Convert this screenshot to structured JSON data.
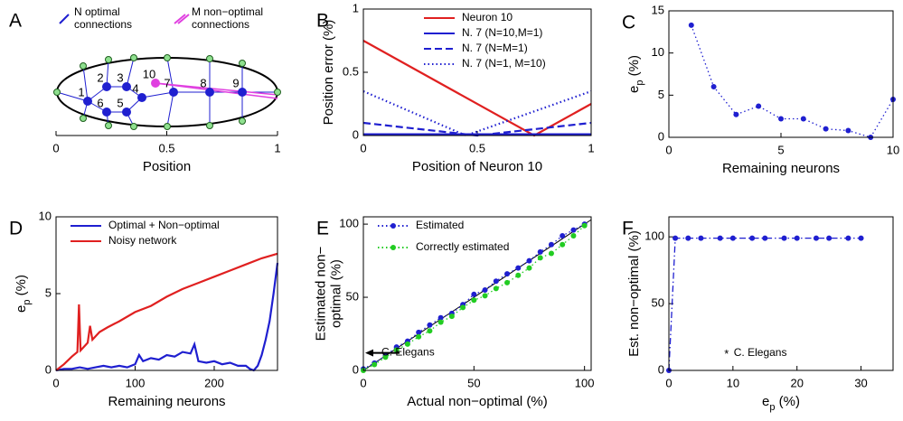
{
  "chart_data": [
    {
      "type": "network",
      "panel": "A",
      "xlabel": "Position",
      "xlim": [
        0,
        1
      ],
      "xticks": [
        0,
        0.5,
        1
      ],
      "legend": [
        [
          "N optimal",
          "connections"
        ],
        [
          "M non−optimal",
          "connections"
        ]
      ],
      "legend_colors": [
        "#1f1fd0",
        "#e040e0"
      ],
      "node_labels": [
        "1",
        "2",
        "3",
        "4",
        "5",
        "6",
        "7",
        "8",
        "9",
        "10"
      ]
    },
    {
      "type": "line",
      "panel": "B",
      "xlabel": "Position of Neuron 10",
      "ylabel": "Position error (%)",
      "xlim": [
        0,
        1
      ],
      "ylim": [
        0,
        1
      ],
      "xticks": [
        0,
        0.5,
        1
      ],
      "yticks": [
        0,
        0.5,
        1
      ],
      "legend": "upper right",
      "series": [
        {
          "name": "Neuron 10",
          "color": "#e02020",
          "dash": "solid",
          "x": [
            0,
            0.75,
            1
          ],
          "values": [
            0.75,
            0,
            0.25
          ]
        },
        {
          "name": "N. 7 (N=10,M=1)",
          "color": "#1f1fd0",
          "dash": "solid",
          "x": [
            0,
            1
          ],
          "values": [
            0.01,
            0.01
          ]
        },
        {
          "name": "N. 7 (N=M=1)",
          "color": "#1f1fd0",
          "dash": "dashed",
          "x": [
            0,
            0.5,
            1
          ],
          "values": [
            0.1,
            0,
            0.1
          ]
        },
        {
          "name": "N. 7 (N=1, M=10)",
          "color": "#1f1fd0",
          "dash": "dotted",
          "x": [
            0,
            0.45,
            1
          ],
          "values": [
            0.35,
            0,
            0.35
          ]
        }
      ]
    },
    {
      "type": "line",
      "panel": "C",
      "xlabel": "Remaining neurons",
      "ylabel": [
        {
          "text": "e"
        },
        {
          "text": "p",
          "sub": true
        },
        {
          "text": " (%)"
        }
      ],
      "xlim": [
        0,
        10
      ],
      "ylim": [
        0,
        15
      ],
      "xticks": [
        0,
        5,
        10
      ],
      "yticks": [
        0,
        5,
        10,
        15
      ],
      "series": [
        {
          "color": "#1f1fd0",
          "dash": "dotted",
          "marker": "o",
          "x": [
            1,
            2,
            3,
            4,
            5,
            6,
            7,
            8,
            9,
            10
          ],
          "values": [
            13.3,
            6,
            2.7,
            3.7,
            2.2,
            2.2,
            1,
            0.8,
            0,
            4.5
          ]
        }
      ]
    },
    {
      "type": "line",
      "panel": "D",
      "xlabel": "Remaining neurons",
      "ylabel": [
        {
          "text": "e"
        },
        {
          "text": "p",
          "sub": true
        },
        {
          "text": " (%)"
        }
      ],
      "xlim": [
        0,
        280
      ],
      "ylim": [
        0,
        10
      ],
      "xticks": [
        0,
        100,
        200
      ],
      "yticks": [
        0,
        5,
        10
      ],
      "legend": "upper left",
      "series": [
        {
          "name": "Optimal + Non−optimal",
          "color": "#1f1fd0",
          "dash": "solid",
          "x": [
            0,
            10,
            20,
            30,
            40,
            50,
            60,
            70,
            80,
            90,
            100,
            105,
            110,
            120,
            130,
            140,
            150,
            160,
            170,
            175,
            180,
            190,
            200,
            210,
            220,
            230,
            240,
            245,
            250,
            255,
            260,
            265,
            270,
            275,
            280
          ],
          "values": [
            0,
            0.1,
            0.1,
            0.2,
            0.1,
            0.2,
            0.3,
            0.2,
            0.3,
            0.2,
            0.4,
            1.0,
            0.6,
            0.8,
            0.7,
            1.0,
            0.9,
            1.2,
            1.1,
            1.7,
            0.6,
            0.5,
            0.6,
            0.4,
            0.5,
            0.3,
            0.3,
            0.1,
            0,
            0.3,
            1.0,
            2.0,
            3.2,
            5.0,
            7.0
          ]
        },
        {
          "name": "Noisy network",
          "color": "#e02020",
          "dash": "solid",
          "x": [
            0,
            10,
            20,
            27,
            29,
            31,
            40,
            43,
            46,
            55,
            65,
            80,
            100,
            120,
            140,
            160,
            180,
            200,
            220,
            240,
            260,
            280
          ],
          "values": [
            0,
            0.4,
            0.9,
            1.2,
            4.3,
            1.3,
            1.8,
            2.9,
            2.0,
            2.5,
            2.8,
            3.2,
            3.8,
            4.2,
            4.8,
            5.3,
            5.7,
            6.1,
            6.5,
            6.9,
            7.3,
            7.6
          ]
        }
      ]
    },
    {
      "type": "line",
      "panel": "E",
      "xlabel": "Actual non−optimal (%)",
      "ylabel": [
        "Estimated non−",
        "optimal (%)"
      ],
      "xlim": [
        0,
        103
      ],
      "ylim": [
        0,
        105
      ],
      "xticks": [
        0,
        50,
        100
      ],
      "yticks": [
        0,
        50,
        100
      ],
      "legend": "upper left",
      "diagonal": true,
      "annotation": {
        "text": "C. Elegans",
        "y": 12
      },
      "series": [
        {
          "name": "Estimated",
          "color": "#1f1fd0",
          "dash": "dotted",
          "marker": "o",
          "x": [
            0,
            5,
            10,
            15,
            20,
            25,
            30,
            35,
            40,
            45,
            50,
            55,
            60,
            65,
            70,
            75,
            80,
            85,
            90,
            95,
            100
          ],
          "values": [
            1,
            5,
            10,
            16,
            20,
            26,
            31,
            36,
            39,
            45,
            52,
            55,
            61,
            66,
            70,
            75,
            81,
            86,
            92,
            96,
            100
          ]
        },
        {
          "name": "Correctly estimated",
          "color": "#22cc22",
          "dash": "dotted",
          "marker": "o",
          "x": [
            0,
            5,
            10,
            15,
            20,
            25,
            30,
            35,
            40,
            45,
            50,
            55,
            60,
            65,
            70,
            75,
            80,
            85,
            90,
            95,
            100
          ],
          "values": [
            0,
            4,
            9,
            14,
            18,
            23,
            27,
            33,
            37,
            43,
            48,
            51,
            56,
            60,
            65,
            70,
            77,
            80,
            86,
            92,
            99
          ]
        }
      ]
    },
    {
      "type": "line",
      "panel": "F",
      "xlabel": [
        {
          "text": "e"
        },
        {
          "text": "p",
          "sub": true
        },
        {
          "text": " (%)"
        }
      ],
      "ylabel": "Est. non−optimal (%)",
      "xlim": [
        0,
        35
      ],
      "ylim": [
        0,
        115
      ],
      "xticks": [
        0,
        10,
        20,
        30
      ],
      "yticks": [
        0,
        50,
        100
      ],
      "point_annotation": {
        "text": "C. Elegans",
        "x": 9,
        "y": 13
      },
      "series": [
        {
          "color": "#1f1fd0",
          "dash": "dashdot",
          "marker": "o",
          "x": [
            0,
            1,
            3,
            5,
            8,
            10,
            13,
            15,
            18,
            20,
            23,
            25,
            28,
            30
          ],
          "values": [
            0,
            99,
            99,
            99,
            99,
            99,
            99,
            99,
            99,
            99,
            99,
            99,
            99,
            99
          ]
        }
      ]
    }
  ]
}
